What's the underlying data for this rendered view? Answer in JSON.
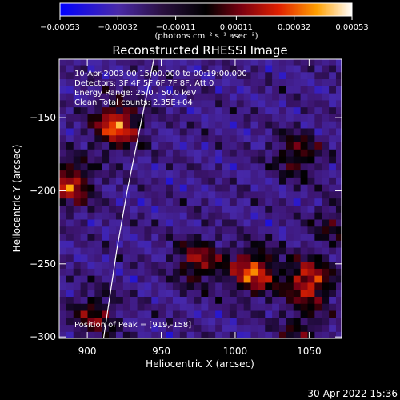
{
  "chart_data": {
    "type": "heatmap",
    "title": "Reconstructed RHESSI Image",
    "xlabel": "Heliocentric X (arcsec)",
    "ylabel": "Heliocentric Y (arcsec)",
    "xlim": [
      881,
      1072
    ],
    "ylim": [
      -301,
      -110
    ],
    "x_ticks": [
      900,
      950,
      1000,
      1050
    ],
    "y_ticks": [
      -300,
      -250,
      -200,
      -150
    ],
    "x_tick_labels": [
      "900",
      "950",
      "1000",
      "1050"
    ],
    "y_tick_labels": [
      "−300",
      "−250",
      "−200",
      "−150"
    ],
    "colorbar": {
      "range": [
        -0.00053,
        0.00053
      ],
      "ticks": [
        -0.00053,
        -0.00032,
        -0.00011,
        0.00011,
        0.00032,
        0.00053
      ],
      "tick_labels": [
        "−0.00053",
        "−0.00032",
        "−0.00011",
        "0.00011",
        "0.00032",
        "0.00053"
      ],
      "unit_label": "(photons cm⁻² s⁻¹ asec⁻²)"
    },
    "annotations": [
      "10-Apr-2003 00:15:00.000 to 00:19:00.000",
      "Detectors: 3F 4F 5F 6F 7F 8F, Att 0",
      "Energy Range: 25.0 - 50.0 keV",
      "Clean    Total counts: 2.35E+04"
    ],
    "peak_label": "Position of Peak = [919,-158]",
    "peak": [
      919,
      -158
    ],
    "hotspots": [
      {
        "x": 920,
        "y": -155,
        "value": 0.00053
      },
      {
        "x": 888,
        "y": -195,
        "value": 0.00045
      },
      {
        "x": 1012,
        "y": -255,
        "value": 0.0005
      },
      {
        "x": 1050,
        "y": -262,
        "value": 0.00048
      },
      {
        "x": 975,
        "y": -248,
        "value": 0.00036
      },
      {
        "x": 1042,
        "y": -175,
        "value": 0.0003
      },
      {
        "x": 905,
        "y": -285,
        "value": 0.0003
      },
      {
        "x": 1045,
        "y": -295,
        "value": 0.00022
      },
      {
        "x": 1067,
        "y": -222,
        "value": 0.0002
      }
    ],
    "limb_curve": [
      [
        945,
        -110
      ],
      [
        937,
        -150
      ],
      [
        927,
        -200
      ],
      [
        920,
        -240
      ],
      [
        911,
        -301
      ]
    ],
    "colors": {
      "limb": "#ffffff",
      "background": "#000000",
      "text": "#ffffff"
    }
  },
  "footer": {
    "timestamp": "30-Apr-2022 15:36"
  }
}
